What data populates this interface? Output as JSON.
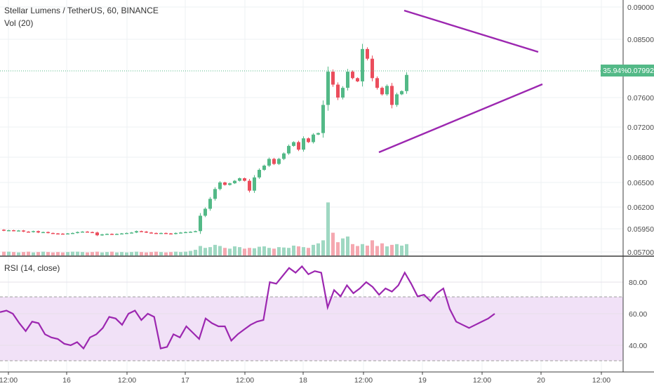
{
  "header": {
    "symbol_line": "Stellar Lumens / TetherUS, 60, BINANCE",
    "volume_label": "Vol (20)",
    "rsi_label": "RSI (14, close)"
  },
  "price_tag": {
    "percent": "35.94%",
    "value": "0.07992"
  },
  "colors": {
    "up": "#53b987",
    "down": "#eb4d5c",
    "vol_up": "#9fd8c2",
    "vol_down": "#f5a8b0",
    "trendline": "#9c27b0",
    "rsi_line": "#9c27b0",
    "rsi_band": "#f1e1f7",
    "last_price_line": "#53b987",
    "grid": "#eef0f3"
  },
  "chart_data": [
    {
      "type": "candlestick",
      "title": "Stellar Lumens / TetherUS, 60, BINANCE",
      "y_ticks": [
        "0.09000",
        "0.08500",
        "0.07600",
        "0.07200",
        "0.06800",
        "0.06500",
        "0.06200",
        "0.05950",
        "0.05700"
      ],
      "x_ticks": [
        "12:00",
        "16",
        "12:00",
        "17",
        "12:00",
        "18",
        "12:00",
        "19",
        "12:00",
        "20",
        "12:00"
      ],
      "last_price": 0.07992,
      "series": [
        {
          "type": "candles",
          "bars": [
            [
              0.0594,
              0.0593
            ],
            [
              0.0593,
              0.05935
            ],
            [
              0.05935,
              0.05928
            ],
            [
              0.05928,
              0.05932
            ],
            [
              0.05932,
              0.0592
            ],
            [
              0.0592,
              0.05915
            ],
            [
              0.05915,
              0.05925
            ],
            [
              0.05925,
              0.0591
            ],
            [
              0.0591,
              0.05915
            ],
            [
              0.05915,
              0.05905
            ],
            [
              0.05905,
              0.059
            ],
            [
              0.059,
              0.05898
            ],
            [
              0.05898,
              0.05895
            ],
            [
              0.05895,
              0.059
            ],
            [
              0.059,
              0.05905
            ],
            [
              0.05905,
              0.05915
            ],
            [
              0.05915,
              0.0592
            ],
            [
              0.0592,
              0.05915
            ],
            [
              0.05915,
              0.0591
            ],
            [
              0.0591,
              0.0588
            ],
            [
              0.0588,
              0.0589
            ],
            [
              0.0589,
              0.05895
            ],
            [
              0.05895,
              0.0589
            ],
            [
              0.0589,
              0.05895
            ],
            [
              0.05895,
              0.059
            ],
            [
              0.059,
              0.05905
            ],
            [
              0.05905,
              0.0591
            ],
            [
              0.0591,
              0.05925
            ],
            [
              0.05925,
              0.0592
            ],
            [
              0.0592,
              0.0591
            ],
            [
              0.0591,
              0.05905
            ],
            [
              0.05905,
              0.059
            ],
            [
              0.059,
              0.05905
            ],
            [
              0.05905,
              0.059
            ],
            [
              0.059,
              0.05895
            ],
            [
              0.05895,
              0.05905
            ],
            [
              0.05905,
              0.0591
            ],
            [
              0.0591,
              0.05915
            ],
            [
              0.05915,
              0.05918
            ],
            [
              0.05918,
              0.05925
            ],
            [
              0.05925,
              0.061
            ],
            [
              0.061,
              0.0618
            ],
            [
              0.0618,
              0.063
            ],
            [
              0.063,
              0.0642
            ],
            [
              0.0642,
              0.065
            ],
            [
              0.065,
              0.0647
            ],
            [
              0.0647,
              0.0649
            ],
            [
              0.0649,
              0.0652
            ],
            [
              0.0652,
              0.0655
            ],
            [
              0.0655,
              0.0652
            ],
            [
              0.0652,
              0.064
            ],
            [
              0.064,
              0.0656
            ],
            [
              0.0656,
              0.0665
            ],
            [
              0.0665,
              0.067
            ],
            [
              0.067,
              0.0678
            ],
            [
              0.0678,
              0.0672
            ],
            [
              0.0672,
              0.0678
            ],
            [
              0.0678,
              0.0685
            ],
            [
              0.0685,
              0.0695
            ],
            [
              0.0695,
              0.07
            ],
            [
              0.07,
              0.069
            ],
            [
              0.069,
              0.0705
            ],
            [
              0.0705,
              0.07
            ],
            [
              0.07,
              0.071
            ],
            [
              0.071,
              0.0712
            ],
            [
              0.0712,
              0.075
            ],
            [
              0.075,
              0.08
            ],
            [
              0.08,
              0.078
            ],
            [
              0.078,
              0.076
            ],
            [
              0.076,
              0.0775
            ],
            [
              0.0775,
              0.08
            ],
            [
              0.08,
              0.079
            ],
            [
              0.079,
              0.0785
            ],
            [
              0.0785,
              0.0835
            ],
            [
              0.0835,
              0.082
            ],
            [
              0.082,
              0.079
            ],
            [
              0.079,
              0.0775
            ],
            [
              0.0775,
              0.0765
            ],
            [
              0.0765,
              0.0778
            ],
            [
              0.0778,
              0.075
            ],
            [
              0.075,
              0.0765
            ],
            [
              0.0765,
              0.077
            ],
            [
              0.077,
              0.0795
            ]
          ]
        },
        {
          "type": "volume",
          "values": [
            1.0,
            1.0,
            0.9,
            0.8,
            0.9,
            1.0,
            0.8,
            0.9,
            1.0,
            0.9,
            0.8,
            0.9,
            0.8,
            0.9,
            1.0,
            1.0,
            0.9,
            0.8,
            0.9,
            1.0,
            0.8,
            0.9,
            1.0,
            0.8,
            0.9,
            0.8,
            0.9,
            1.0,
            0.9,
            0.8,
            0.9,
            1.0,
            0.9,
            0.8,
            0.9,
            1.0,
            0.9,
            1.0,
            1.2,
            1.5,
            2.5,
            2.0,
            2.2,
            2.8,
            2.5,
            2.0,
            1.8,
            2.4,
            2.2,
            1.8,
            2.0,
            1.9,
            2.3,
            2.4,
            2.0,
            1.8,
            2.2,
            2.1,
            2.0,
            2.6,
            2.4,
            2.2,
            2.0,
            2.8,
            3.2,
            4.0,
            14.0,
            6.0,
            3.5,
            4.5,
            5.0,
            3.0,
            2.5,
            3.0,
            2.6,
            4.0,
            2.5,
            3.2,
            2.4,
            2.8,
            3.0,
            2.6,
            3.0
          ]
        }
      ]
    },
    {
      "type": "line",
      "title": "RSI (14, close)",
      "y_ticks": [
        "80.00",
        "60.00",
        "40.00"
      ],
      "band": [
        30,
        70
      ],
      "series": [
        {
          "values": [
            61,
            62,
            60,
            54,
            49,
            55,
            54,
            47,
            45,
            44,
            41,
            40,
            42,
            38,
            45,
            47,
            51,
            58,
            57,
            53,
            60,
            62,
            56,
            60,
            58,
            38,
            39,
            47,
            45,
            52,
            48,
            44,
            57,
            54,
            52,
            52,
            43,
            47,
            50,
            53,
            55,
            56,
            80,
            79,
            84,
            89,
            86,
            90,
            85,
            87,
            86,
            64,
            75,
            71,
            78,
            73,
            76,
            80,
            77,
            72,
            76,
            74,
            78,
            86,
            79,
            71,
            72,
            68,
            73,
            76,
            63,
            55,
            53,
            51,
            53,
            55,
            57,
            60
          ]
        }
      ]
    }
  ]
}
